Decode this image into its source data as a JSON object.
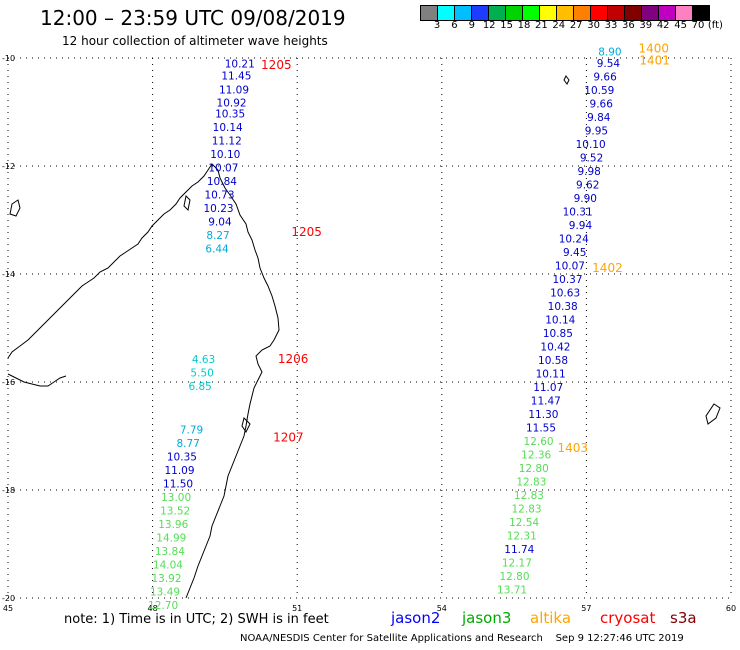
{
  "title": "12:00 – 23:59 UTC 09/08/2019",
  "subtitle": "12 hour collection of altimeter wave heights",
  "legend": {
    "colors": [
      "#808080",
      "#00ffff",
      "#00bfff",
      "#1e3cff",
      "#00b050",
      "#00d400",
      "#00ff00",
      "#ffff00",
      "#ffbf00",
      "#ff8000",
      "#ff0000",
      "#c00000",
      "#800000",
      "#800080",
      "#c000c0",
      "#ff80c0",
      "#000000"
    ],
    "labels": [
      "3",
      "6",
      "9",
      "12",
      "15",
      "18",
      "21",
      "24",
      "27",
      "30",
      "33",
      "36",
      "39",
      "42",
      "45",
      "70",
      "(ft)"
    ]
  },
  "y_ticks": [
    "-10",
    "-12",
    "-14",
    "-16",
    "-18",
    "-20"
  ],
  "x_ticks": [
    "45",
    "48",
    "51",
    "54",
    "57",
    "60"
  ],
  "time_labels": [
    {
      "text": "1205",
      "color": "#ff0000",
      "lon": 50.25,
      "lat": -10.2
    },
    {
      "text": "1205",
      "color": "#ff0000",
      "lon": 50.88,
      "lat": -13.3
    },
    {
      "text": "1206",
      "color": "#ff0000",
      "lon": 50.6,
      "lat": -15.65
    },
    {
      "text": "1207",
      "color": "#ff0000",
      "lon": 50.5,
      "lat": -17.1
    },
    {
      "text": "1400",
      "color": "#ffa500",
      "lon": 58.08,
      "lat": -9.9
    },
    {
      "text": "1401",
      "color": "#ffa500",
      "lon": 58.1,
      "lat": -10.12
    },
    {
      "text": "1402",
      "color": "#ffa500",
      "lon": 57.12,
      "lat": -13.96
    },
    {
      "text": "1403",
      "color": "#ffa500",
      "lon": 56.4,
      "lat": -17.3
    }
  ],
  "track_west": [
    {
      "v": "10.21",
      "c": "#0000cc",
      "lon": 50.12,
      "lat": -10.18
    },
    {
      "v": "11.45",
      "c": "#0000cc",
      "lon": 50.05,
      "lat": -10.4
    },
    {
      "v": "11.09",
      "c": "#0000cc",
      "lon": 50.0,
      "lat": -10.66
    },
    {
      "v": "10.92",
      "c": "#0000cc",
      "lon": 49.95,
      "lat": -10.9
    },
    {
      "v": "10.35",
      "c": "#0000cc",
      "lon": 49.92,
      "lat": -11.1
    },
    {
      "v": "10.14",
      "c": "#0000cc",
      "lon": 49.87,
      "lat": -11.35
    },
    {
      "v": "11.12",
      "c": "#0000cc",
      "lon": 49.85,
      "lat": -11.6
    },
    {
      "v": "10.10",
      "c": "#0000cc",
      "lon": 49.82,
      "lat": -11.85
    },
    {
      "v": "10.07",
      "c": "#0000cc",
      "lon": 49.78,
      "lat": -12.1
    },
    {
      "v": "10.84",
      "c": "#0000cc",
      "lon": 49.75,
      "lat": -12.35
    },
    {
      "v": "10.73",
      "c": "#0000cc",
      "lon": 49.7,
      "lat": -12.6
    },
    {
      "v": "10.23",
      "c": "#0000cc",
      "lon": 49.68,
      "lat": -12.85
    },
    {
      "v": "9.04",
      "c": "#0000cc",
      "lon": 49.64,
      "lat": -13.1
    },
    {
      "v": "8.27",
      "c": "#00aadd",
      "lon": 49.6,
      "lat": -13.35
    },
    {
      "v": "6.44",
      "c": "#00aadd",
      "lon": 49.58,
      "lat": -13.6
    },
    {
      "v": "4.63",
      "c": "#00cccc",
      "lon": 49.3,
      "lat": -15.65
    },
    {
      "v": "5.50",
      "c": "#00cccc",
      "lon": 49.27,
      "lat": -15.9
    },
    {
      "v": "6.85",
      "c": "#00cccc",
      "lon": 49.23,
      "lat": -16.15
    },
    {
      "v": "7.79",
      "c": "#00aadd",
      "lon": 49.05,
      "lat": -16.95
    },
    {
      "v": "8.77",
      "c": "#00aadd",
      "lon": 48.98,
      "lat": -17.2
    },
    {
      "v": "10.35",
      "c": "#0000cc",
      "lon": 48.92,
      "lat": -17.45
    },
    {
      "v": "11.09",
      "c": "#0000cc",
      "lon": 48.87,
      "lat": -17.7
    },
    {
      "v": "11.50",
      "c": "#0000cc",
      "lon": 48.84,
      "lat": -17.95
    },
    {
      "v": "13.00",
      "c": "#55dd55",
      "lon": 48.8,
      "lat": -18.2
    },
    {
      "v": "13.52",
      "c": "#55dd55",
      "lon": 48.78,
      "lat": -18.45
    },
    {
      "v": "13.96",
      "c": "#55dd55",
      "lon": 48.74,
      "lat": -18.7
    },
    {
      "v": "14.99",
      "c": "#55dd55",
      "lon": 48.7,
      "lat": -18.95
    },
    {
      "v": "13.84",
      "c": "#55dd55",
      "lon": 48.67,
      "lat": -19.2
    },
    {
      "v": "14.04",
      "c": "#55dd55",
      "lon": 48.63,
      "lat": -19.45
    },
    {
      "v": "13.92",
      "c": "#55dd55",
      "lon": 48.6,
      "lat": -19.7
    },
    {
      "v": "13.49",
      "c": "#55dd55",
      "lon": 48.57,
      "lat": -19.95
    },
    {
      "v": "12.70",
      "c": "#55dd55",
      "lon": 48.53,
      "lat": -20.2
    }
  ],
  "track_east": [
    {
      "v": "8.90",
      "c": "#00aadd",
      "lon": 57.73,
      "lat": -9.95
    },
    {
      "v": "9.54",
      "c": "#0000cc",
      "lon": 57.7,
      "lat": -10.17
    },
    {
      "v": "9.66",
      "c": "#0000cc",
      "lon": 57.63,
      "lat": -10.42
    },
    {
      "v": "10.59",
      "c": "#0000cc",
      "lon": 57.58,
      "lat": -10.67
    },
    {
      "v": "9.66",
      "c": "#0000cc",
      "lon": 57.55,
      "lat": -10.92
    },
    {
      "v": "9.84",
      "c": "#0000cc",
      "lon": 57.5,
      "lat": -11.17
    },
    {
      "v": "9.95",
      "c": "#0000cc",
      "lon": 57.45,
      "lat": -11.42
    },
    {
      "v": "10.10",
      "c": "#0000cc",
      "lon": 57.4,
      "lat": -11.67
    },
    {
      "v": "9.52",
      "c": "#0000cc",
      "lon": 57.35,
      "lat": -11.92
    },
    {
      "v": "9.98",
      "c": "#0000cc",
      "lon": 57.3,
      "lat": -12.17
    },
    {
      "v": "9.62",
      "c": "#0000cc",
      "lon": 57.27,
      "lat": -12.42
    },
    {
      "v": "9.90",
      "c": "#0000cc",
      "lon": 57.22,
      "lat": -12.67
    },
    {
      "v": "10.31",
      "c": "#0000cc",
      "lon": 57.13,
      "lat": -12.92
    },
    {
      "v": "9.94",
      "c": "#0000cc",
      "lon": 57.12,
      "lat": -13.17
    },
    {
      "v": "10.24",
      "c": "#0000cc",
      "lon": 57.05,
      "lat": -13.42
    },
    {
      "v": "9.45",
      "c": "#0000cc",
      "lon": 57.0,
      "lat": -13.67
    },
    {
      "v": "10.07",
      "c": "#0000cc",
      "lon": 56.97,
      "lat": -13.92
    },
    {
      "v": "10.37",
      "c": "#0000cc",
      "lon": 56.92,
      "lat": -14.17
    },
    {
      "v": "10.63",
      "c": "#0000cc",
      "lon": 56.87,
      "lat": -14.42
    },
    {
      "v": "10.38",
      "c": "#0000cc",
      "lon": 56.82,
      "lat": -14.67
    },
    {
      "v": "10.14",
      "c": "#0000cc",
      "lon": 56.77,
      "lat": -14.92
    },
    {
      "v": "10.85",
      "c": "#0000cc",
      "lon": 56.72,
      "lat": -15.17
    },
    {
      "v": "10.42",
      "c": "#0000cc",
      "lon": 56.67,
      "lat": -15.42
    },
    {
      "v": "10.58",
      "c": "#0000cc",
      "lon": 56.62,
      "lat": -15.67
    },
    {
      "v": "10.11",
      "c": "#0000cc",
      "lon": 56.57,
      "lat": -15.92
    },
    {
      "v": "11.07",
      "c": "#0000cc",
      "lon": 56.52,
      "lat": -16.17
    },
    {
      "v": "11.47",
      "c": "#0000cc",
      "lon": 56.47,
      "lat": -16.42
    },
    {
      "v": "11.30",
      "c": "#0000cc",
      "lon": 56.42,
      "lat": -16.67
    },
    {
      "v": "11.55",
      "c": "#0000cc",
      "lon": 56.37,
      "lat": -16.92
    },
    {
      "v": "12.60",
      "c": "#55dd55",
      "lon": 56.32,
      "lat": -17.17
    },
    {
      "v": "12.36",
      "c": "#55dd55",
      "lon": 56.27,
      "lat": -17.42
    },
    {
      "v": "12.80",
      "c": "#55dd55",
      "lon": 56.22,
      "lat": -17.67
    },
    {
      "v": "12.83",
      "c": "#55dd55",
      "lon": 56.17,
      "lat": -17.92
    },
    {
      "v": "12.83",
      "c": "#55dd55",
      "lon": 56.12,
      "lat": -18.17
    },
    {
      "v": "12.83",
      "c": "#55dd55",
      "lon": 56.07,
      "lat": -18.42
    },
    {
      "v": "12.54",
      "c": "#55dd55",
      "lon": 56.02,
      "lat": -18.67
    },
    {
      "v": "12.31",
      "c": "#55dd55",
      "lon": 55.97,
      "lat": -18.92
    },
    {
      "v": "11.74",
      "c": "#0000cc",
      "lon": 55.92,
      "lat": -19.17
    },
    {
      "v": "12.17",
      "c": "#55dd55",
      "lon": 55.87,
      "lat": -19.42
    },
    {
      "v": "12.80",
      "c": "#55dd55",
      "lon": 55.82,
      "lat": -19.67
    },
    {
      "v": "13.71",
      "c": "#55dd55",
      "lon": 55.77,
      "lat": -19.92
    }
  ],
  "note": "note: 1) Time is in UTC; 2) SWH is in feet",
  "satellites": [
    {
      "name": "jason2",
      "color": "#0000ff"
    },
    {
      "name": "jason3",
      "color": "#00aa00"
    },
    {
      "name": "altika",
      "color": "#ffa500"
    },
    {
      "name": "cryosat",
      "color": "#ff0000"
    },
    {
      "name": "s3a",
      "color": "#800000"
    }
  ],
  "credit": "NOAA/NESDIS Center for Satellite Applications and Research",
  "timestamp": "Sep  9 12:27:46 UTC 2019"
}
